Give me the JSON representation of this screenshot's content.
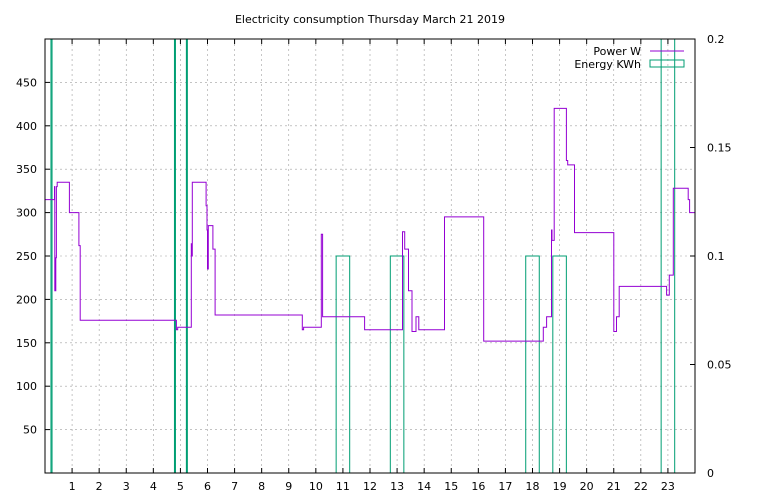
{
  "chart_data": {
    "type": "line",
    "title": "Electricity consumption Thursday March 21 2019",
    "xlim": [
      0,
      24
    ],
    "ylim": [
      0,
      500
    ],
    "y2lim": [
      0,
      0.2
    ],
    "grid": true,
    "legend_position": "top-right",
    "x_ticks": [
      1,
      2,
      3,
      4,
      5,
      6,
      7,
      8,
      9,
      10,
      11,
      12,
      13,
      14,
      15,
      16,
      17,
      18,
      19,
      20,
      21,
      22,
      23
    ],
    "y_ticks": [
      50,
      100,
      150,
      200,
      250,
      300,
      350,
      400,
      450
    ],
    "y2_ticks": [
      "0",
      "0.05",
      "0.1",
      "0.15",
      "0.2"
    ],
    "y2_tick_values": [
      0,
      0.05,
      0.1,
      0.15,
      0.2
    ],
    "series": [
      {
        "name": "Power W",
        "color": "#9400d3",
        "axis": "left",
        "kind": "step",
        "x": [
          0,
          0.35,
          0.36,
          0.4,
          0.42,
          0.45,
          0.5,
          0.9,
          1.25,
          1.3,
          3.75,
          4.85,
          4.9,
          5.4,
          5.42,
          5.44,
          5.95,
          5.98,
          6.0,
          6.03,
          6.05,
          6.2,
          6.28,
          8.9,
          9.5,
          9.55,
          10.2,
          10.25,
          11.35,
          11.8,
          11.9,
          13.2,
          13.22,
          13.28,
          13.42,
          13.55,
          13.7,
          13.8,
          14.75,
          14.82,
          16.2,
          16.25,
          18.4,
          18.45,
          18.52,
          18.7,
          18.72,
          18.8,
          19.25,
          19.3,
          19.55,
          21.0,
          21.05,
          21.1,
          21.2,
          22.95,
          23.0,
          23.05,
          23.2,
          23.75,
          23.8,
          24.0
        ],
        "y": [
          315,
          330,
          210,
          248,
          330,
          335,
          335,
          300,
          262,
          176,
          176,
          165,
          168,
          264,
          250,
          335,
          308,
          280,
          235,
          285,
          285,
          258,
          182,
          182,
          165,
          168,
          275,
          180,
          180,
          165,
          165,
          278,
          278,
          258,
          210,
          163,
          180,
          165,
          295,
          295,
          152,
          152,
          168,
          168,
          180,
          280,
          268,
          420,
          360,
          355,
          277,
          163,
          163,
          180,
          215,
          205,
          205,
          228,
          328,
          315,
          300,
          248
        ]
      },
      {
        "name": "Energy KWh",
        "color": "#009e73",
        "axis": "right",
        "kind": "boxes",
        "boxes": [
          {
            "x0": 0.22,
            "x1": 0.26,
            "top": 0.2
          },
          {
            "x0": 4.78,
            "x1": 4.8,
            "top": 0.2
          },
          {
            "x0": 5.22,
            "x1": 5.25,
            "top": 0.2
          },
          {
            "x0": 10.75,
            "x1": 11.25,
            "top": 0.1
          },
          {
            "x0": 12.75,
            "x1": 13.25,
            "top": 0.1
          },
          {
            "x0": 17.75,
            "x1": 18.25,
            "top": 0.1
          },
          {
            "x0": 18.75,
            "x1": 19.25,
            "top": 0.1
          },
          {
            "x0": 22.75,
            "x1": 23.25,
            "top": 0.2
          }
        ]
      }
    ]
  }
}
